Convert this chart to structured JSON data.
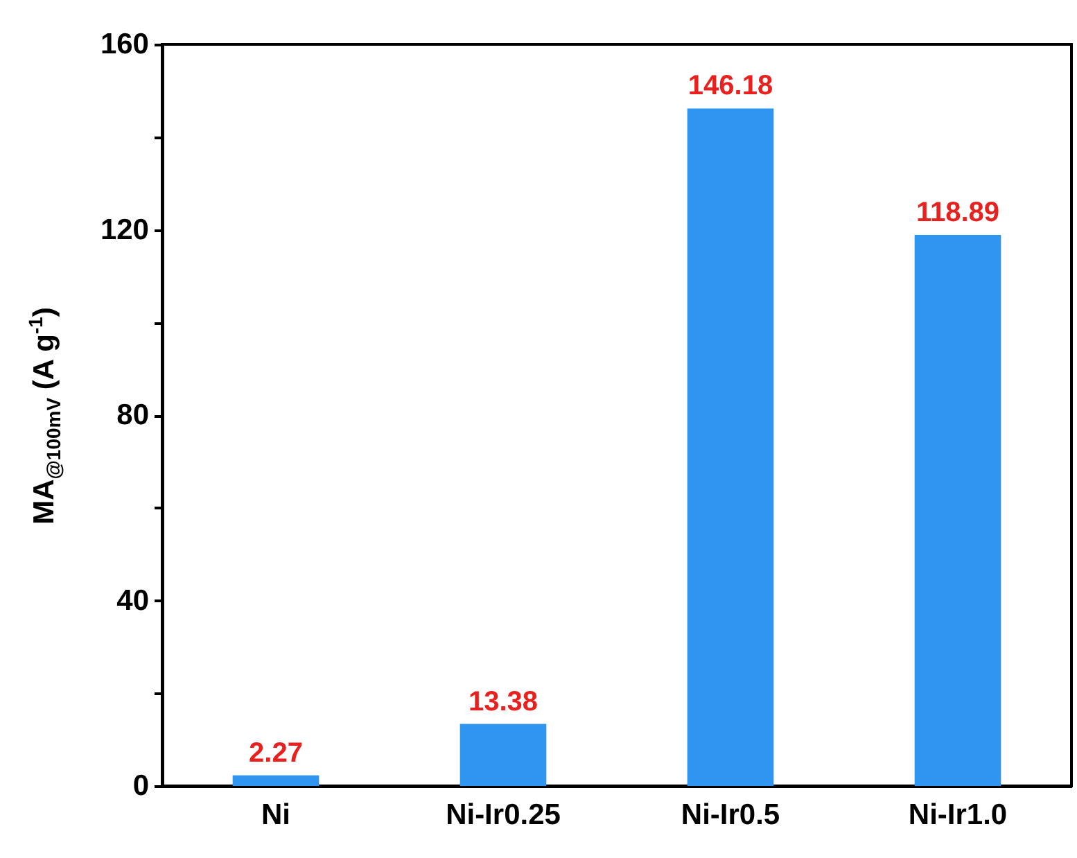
{
  "chart_data": {
    "type": "bar",
    "ylabel": "MA$_{@100mV}$ (A g$^{-1}$)",
    "categories": [
      "Ni",
      "Ni-Ir0.25",
      "Ni-Ir0.5",
      "Ni-Ir1.0"
    ],
    "values": [
      2.27,
      13.38,
      146.18,
      118.89
    ],
    "color": "#2e95f0",
    "ylim": [
      0,
      160
    ],
    "yticks": [
      0,
      {
        "value": 20,
        "label": null
      },
      40,
      {
        "value": 60,
        "label": null
      },
      80,
      {
        "value": 100,
        "label": null
      },
      120,
      {
        "value": 140,
        "label": null
      },
      160
    ],
    "data_labels": true
  }
}
